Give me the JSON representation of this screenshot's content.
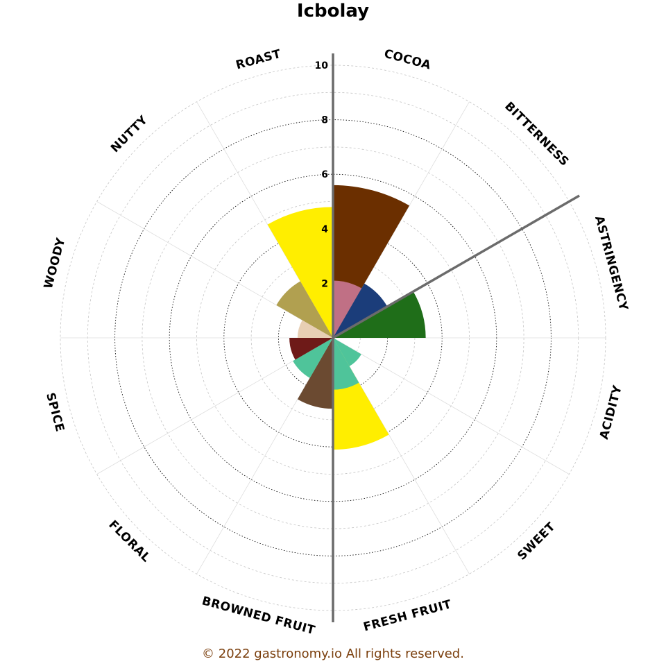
{
  "chart_data": {
    "type": "polar-bar",
    "title": "Icbolay",
    "rlim": [
      0,
      10
    ],
    "r_ticks": [
      "2",
      "4",
      "6",
      "8",
      "10"
    ],
    "categories": [
      "COCOA",
      "BITTERNESS",
      "ASTRINGENCY",
      "ACIDITY",
      "SWEET",
      "FRESH FRUIT",
      "BROWNED FRUIT",
      "FLORAL",
      "SPICE",
      "WOODY",
      "NUTTY",
      "ROAST"
    ],
    "series": [
      {
        "values": [
          5.6,
          0,
          0,
          0,
          0,
          4.1,
          0,
          0,
          0,
          0,
          0,
          4.8
        ],
        "colors": [
          "#6b2f00",
          "#6b2f00",
          "#6b2f00",
          "#6b2f00",
          "#6b2f00",
          "#ffee00",
          "#6b2f00",
          "#6b2f00",
          "#6b2f00",
          "#6b2f00",
          "#6b2f00",
          "#ffee00"
        ]
      },
      {
        "values": [
          2.1,
          2.3,
          3.4,
          0,
          1.2,
          1.9,
          2.6,
          1.7,
          1.6,
          1.3,
          2.4,
          0
        ],
        "colors": [
          "#c07085",
          "#1b3d7a",
          "#1f6e19",
          "#1f6e19",
          "#4fc49a",
          "#4fc49a",
          "#6b4a31",
          "#4fc49a",
          "#6e1a18",
          "#e8cfb4",
          "#b1a050",
          "#b1a050"
        ]
      }
    ],
    "highlight_axes": [
      "COCOA",
      "ASTRINGENCY",
      "BROWNED FRUIT"
    ]
  },
  "footer": {
    "copyright": "© 2022 gastronomy.io All rights reserved."
  }
}
